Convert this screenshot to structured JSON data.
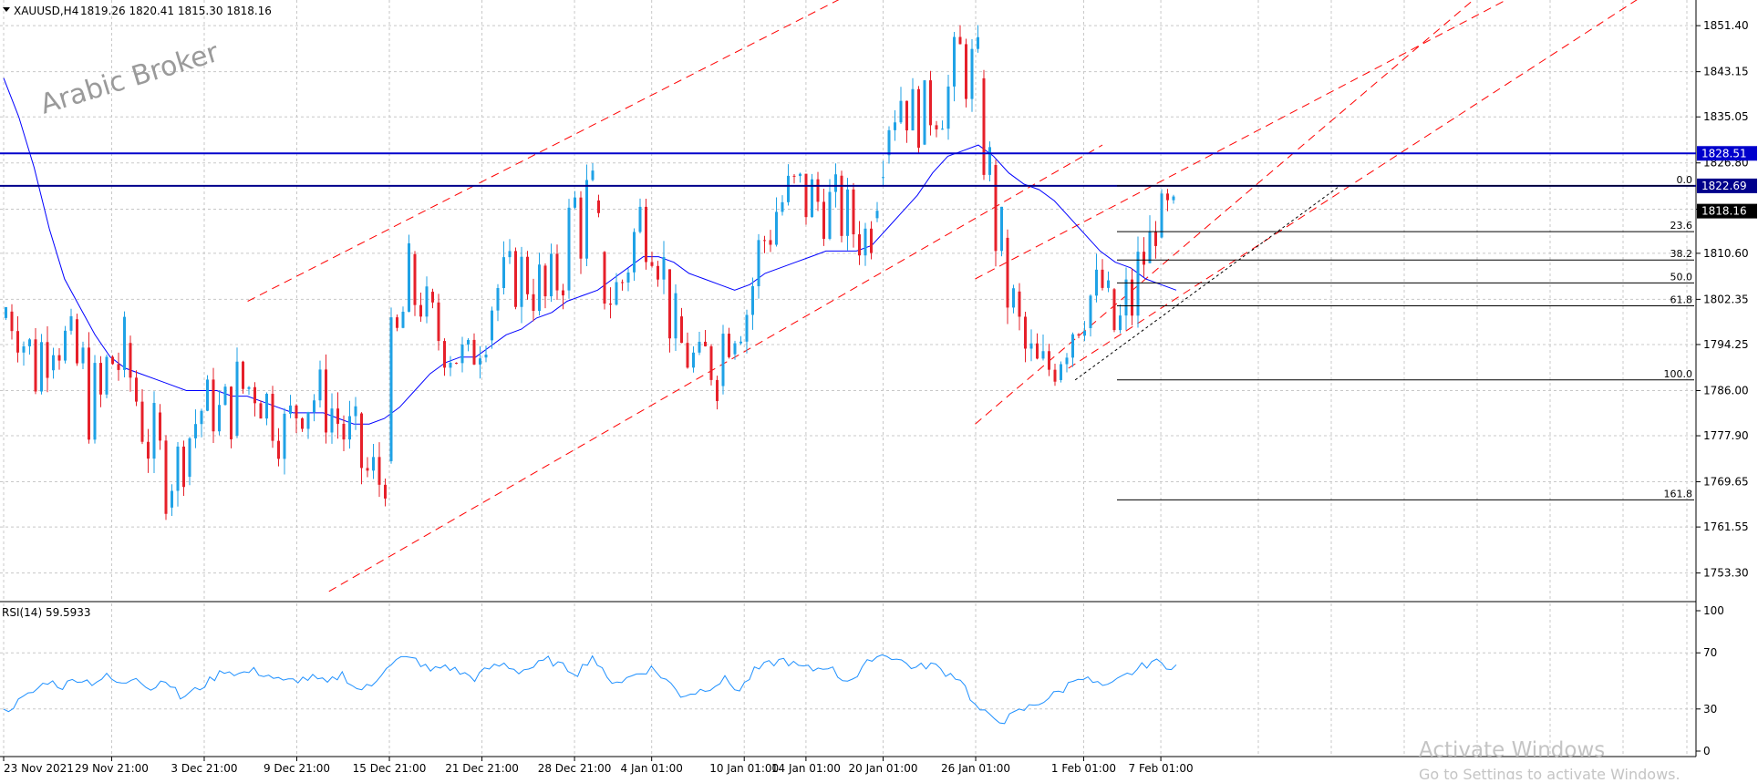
{
  "chart_data": [
    {
      "type": "candlestick",
      "header": {
        "symbol_tf": "XAUUSD,H4",
        "ohlc": "1819.26 1820.41 1815.30 1818.16"
      },
      "watermark": "Arabic Broker",
      "ylim": [
        1748.5,
        1856.0
      ],
      "price_ticks": [
        "1851.40",
        "1843.15",
        "1835.05",
        "1826.80",
        "1818.50",
        "1810.60",
        "1802.35",
        "1794.25",
        "1786.00",
        "1777.90",
        "1769.65",
        "1761.55",
        "1753.30"
      ],
      "x_labels": [
        "23 Nov 2021",
        "29 Nov 21:00",
        "3 Dec 21:00",
        "9 Dec 21:00",
        "15 Dec 21:00",
        "21 Dec 21:00",
        "28 Dec 21:00",
        "4 Jan 01:00",
        "10 Jan 01:00",
        "14 Jan 01:00",
        "20 Jan 01:00",
        "26 Jan 01:00",
        "1 Feb 01:00",
        "7 Feb 01:00"
      ],
      "horizontal_levels": [
        {
          "price": 1828.51,
          "label": "1828.51",
          "color": "#0000cc"
        },
        {
          "price": 1822.69,
          "label": "1822.69",
          "color": "#00008b"
        }
      ],
      "last_price": {
        "price": 1818.16,
        "label": "1818.16",
        "color": "#000000"
      },
      "fibonacci": {
        "high": 1822.69,
        "low": 1787.91,
        "levels": [
          {
            "ratio": 0.0,
            "label": "0.0"
          },
          {
            "ratio": 0.236,
            "label": "23.6"
          },
          {
            "ratio": 0.382,
            "label": "38.2"
          },
          {
            "ratio": 0.5,
            "label": "50.0"
          },
          {
            "ratio": 0.618,
            "label": "61.8"
          },
          {
            "ratio": 1.0,
            "label": "100.0"
          },
          {
            "ratio": 1.618,
            "label": "161.8"
          }
        ]
      },
      "anchors": [
        {
          "label": "23 Nov 2021",
          "low": 1799,
          "high": 1799
        },
        {
          "label": "",
          "low": 1790,
          "high": 1802
        },
        {
          "label": "",
          "low": 1781,
          "high": 1799
        },
        {
          "label": "",
          "low": 1790,
          "high": 1813
        },
        {
          "label": "",
          "low": 1785,
          "high": 1800
        },
        {
          "label": "",
          "low": 1779,
          "high": 1798
        },
        {
          "label": "",
          "low": 1770,
          "high": 1792
        },
        {
          "label": "29 Nov 21:00",
          "low": 1776,
          "high": 1811
        },
        {
          "label": "",
          "low": 1783,
          "high": 1795
        },
        {
          "label": "",
          "low": 1771,
          "high": 1788
        },
        {
          "label": "",
          "low": 1762,
          "high": 1782
        },
        {
          "label": "",
          "low": 1766,
          "high": 1778
        },
        {
          "label": "",
          "low": 1771,
          "high": 1787
        },
        {
          "label": "3 Dec 21:00",
          "low": 1780,
          "high": 1789
        },
        {
          "label": "",
          "low": 1773,
          "high": 1788
        },
        {
          "label": "",
          "low": 1778,
          "high": 1794
        },
        {
          "label": "",
          "low": 1782,
          "high": 1792
        },
        {
          "label": "",
          "low": 1777,
          "high": 1790
        },
        {
          "label": "",
          "low": 1772,
          "high": 1785
        },
        {
          "label": "9 Dec 21:00",
          "low": 1778,
          "high": 1789
        },
        {
          "label": "",
          "low": 1779,
          "high": 1791
        },
        {
          "label": "",
          "low": 1776,
          "high": 1791
        },
        {
          "label": "",
          "low": 1770,
          "high": 1786
        },
        {
          "label": "",
          "low": 1765,
          "high": 1782
        },
        {
          "label": "",
          "low": 1753,
          "high": 1780
        },
        {
          "label": "15 Dec 21:00",
          "low": 1774,
          "high": 1800
        },
        {
          "label": "",
          "low": 1794,
          "high": 1814
        },
        {
          "label": "",
          "low": 1797,
          "high": 1807
        },
        {
          "label": "",
          "low": 1790,
          "high": 1802
        },
        {
          "label": "",
          "low": 1788,
          "high": 1798
        },
        {
          "label": "",
          "low": 1786,
          "high": 1796
        },
        {
          "label": "21 Dec 21:00",
          "low": 1791,
          "high": 1810
        },
        {
          "label": "",
          "low": 1799,
          "high": 1811
        },
        {
          "label": "",
          "low": 1800,
          "high": 1812
        },
        {
          "label": "",
          "low": 1798,
          "high": 1817
        },
        {
          "label": "",
          "low": 1795,
          "high": 1808
        },
        {
          "label": "",
          "low": 1800,
          "high": 1817
        },
        {
          "label": "28 Dec 21:00",
          "low": 1808,
          "high": 1831
        },
        {
          "label": "",
          "low": 1801,
          "high": 1830
        },
        {
          "label": "",
          "low": 1798,
          "high": 1806
        },
        {
          "label": "",
          "low": 1800,
          "high": 1812
        },
        {
          "label": "",
          "low": 1810,
          "high": 1823
        },
        {
          "label": "4 Jan 01:00",
          "low": 1808,
          "high": 1829
        },
        {
          "label": "",
          "low": 1793,
          "high": 1808
        },
        {
          "label": "",
          "low": 1787,
          "high": 1797
        },
        {
          "label": "",
          "low": 1788,
          "high": 1795
        },
        {
          "label": "",
          "low": 1782,
          "high": 1803
        },
        {
          "label": "",
          "low": 1792,
          "high": 1806
        },
        {
          "label": "10 Jan 01:00",
          "low": 1794,
          "high": 1807
        },
        {
          "label": "",
          "low": 1803,
          "high": 1822
        },
        {
          "label": "",
          "low": 1812,
          "high": 1826
        },
        {
          "label": "",
          "low": 1815,
          "high": 1828
        },
        {
          "label": "14 Jan 01:00",
          "low": 1812,
          "high": 1829
        },
        {
          "label": "",
          "low": 1813,
          "high": 1826
        },
        {
          "label": "",
          "low": 1811,
          "high": 1825
        },
        {
          "label": "",
          "low": 1808,
          "high": 1822
        },
        {
          "label": "",
          "low": 1808,
          "high": 1819
        },
        {
          "label": "20 Jan 01:00",
          "low": 1827,
          "high": 1846
        },
        {
          "label": "",
          "low": 1832,
          "high": 1847
        },
        {
          "label": "",
          "low": 1829,
          "high": 1840
        },
        {
          "label": "",
          "low": 1831,
          "high": 1843
        },
        {
          "label": "",
          "low": 1832,
          "high": 1846
        },
        {
          "label": "",
          "low": 1838,
          "high": 1855
        },
        {
          "label": "26 Jan 01:00",
          "low": 1829,
          "high": 1850
        },
        {
          "label": "",
          "low": 1808,
          "high": 1829
        },
        {
          "label": "",
          "low": 1794,
          "high": 1812
        },
        {
          "label": "",
          "low": 1786,
          "high": 1800
        },
        {
          "label": "",
          "low": 1780,
          "high": 1796
        },
        {
          "label": "",
          "low": 1786,
          "high": 1797
        },
        {
          "label": "",
          "low": 1791,
          "high": 1804
        },
        {
          "label": "1 Feb 01:00",
          "low": 1796,
          "high": 1808
        },
        {
          "label": "",
          "low": 1800,
          "high": 1810
        },
        {
          "label": "",
          "low": 1788,
          "high": 1803
        },
        {
          "label": "",
          "low": 1791,
          "high": 1815
        },
        {
          "label": "",
          "low": 1808,
          "high": 1816
        },
        {
          "label": "7 Feb 01:00",
          "low": 1814,
          "high": 1822
        },
        {
          "label": "",
          "low": 1815,
          "high": 1821
        }
      ],
      "moving_average": [
        {
          "price": 1842
        },
        {
          "price": 1835
        },
        {
          "price": 1826
        },
        {
          "price": 1815
        },
        {
          "price": 1806
        },
        {
          "price": 1801
        },
        {
          "price": 1796
        },
        {
          "price": 1792
        },
        {
          "price": 1790
        },
        {
          "price": 1789
        },
        {
          "price": 1788
        },
        {
          "price": 1787
        },
        {
          "price": 1786
        },
        {
          "price": 1786
        },
        {
          "price": 1786
        },
        {
          "price": 1785
        },
        {
          "price": 1785
        },
        {
          "price": 1784
        },
        {
          "price": 1783
        },
        {
          "price": 1782
        },
        {
          "price": 1782
        },
        {
          "price": 1782
        },
        {
          "price": 1781
        },
        {
          "price": 1780
        },
        {
          "price": 1780
        },
        {
          "price": 1781
        },
        {
          "price": 1783
        },
        {
          "price": 1786
        },
        {
          "price": 1789
        },
        {
          "price": 1791
        },
        {
          "price": 1792
        },
        {
          "price": 1792
        },
        {
          "price": 1794
        },
        {
          "price": 1796
        },
        {
          "price": 1797
        },
        {
          "price": 1799
        },
        {
          "price": 1800
        },
        {
          "price": 1802
        },
        {
          "price": 1803
        },
        {
          "price": 1804
        },
        {
          "price": 1806
        },
        {
          "price": 1808
        },
        {
          "price": 1810
        },
        {
          "price": 1810
        },
        {
          "price": 1809
        },
        {
          "price": 1807
        },
        {
          "price": 1806
        },
        {
          "price": 1805
        },
        {
          "price": 1804
        },
        {
          "price": 1805
        },
        {
          "price": 1807
        },
        {
          "price": 1808
        },
        {
          "price": 1809
        },
        {
          "price": 1810
        },
        {
          "price": 1811
        },
        {
          "price": 1811
        },
        {
          "price": 1811
        },
        {
          "price": 1812
        },
        {
          "price": 1815
        },
        {
          "price": 1818
        },
        {
          "price": 1821
        },
        {
          "price": 1825
        },
        {
          "price": 1828
        },
        {
          "price": 1829
        },
        {
          "price": 1830
        },
        {
          "price": 1828
        },
        {
          "price": 1825
        },
        {
          "price": 1823
        },
        {
          "price": 1822
        },
        {
          "price": 1820
        },
        {
          "price": 1817
        },
        {
          "price": 1814
        },
        {
          "price": 1811
        },
        {
          "price": 1809
        },
        {
          "price": 1808
        },
        {
          "price": 1806
        },
        {
          "price": 1805
        },
        {
          "price": 1804
        }
      ],
      "trend_lines": [
        {
          "from": [
            0.146,
            1802
          ],
          "to": [
            0.52,
            1860
          ],
          "style": "dashed",
          "color": "#ff0000"
        },
        {
          "from": [
            0.194,
            1750
          ],
          "to": [
            0.65,
            1830
          ],
          "style": "dashed",
          "color": "#ff0000"
        },
        {
          "from": [
            0.575,
            1780
          ],
          "to": [
            0.888,
            1861
          ],
          "style": "dashed",
          "color": "#ff0000"
        },
        {
          "from": [
            0.575,
            1806
          ],
          "to": [
            0.888,
            1856
          ],
          "style": "dashed",
          "color": "#ff0000"
        },
        {
          "from": [
            0.63,
            1790
          ],
          "to": [
            0.97,
            1857
          ],
          "style": "dashed",
          "color": "#ff0000"
        },
        {
          "from": [
            0.634,
            1787.91
          ],
          "to": [
            0.79,
            1822.69
          ],
          "style": "dotted",
          "color": "#000000"
        }
      ]
    },
    {
      "type": "line",
      "title": "RSI(14) 59.5933",
      "ylim": [
        0,
        100
      ],
      "y_ticks": [
        "100",
        "70",
        "30",
        "0"
      ],
      "series": [
        {
          "values": [
            28,
            35,
            42,
            50,
            46,
            52,
            49,
            53,
            47,
            54,
            44,
            52,
            38,
            43,
            50,
            58,
            55,
            57,
            54,
            49,
            51,
            52,
            48,
            55,
            44,
            46,
            61,
            66,
            65,
            57,
            61,
            56,
            52,
            59,
            62,
            57,
            60,
            65,
            60,
            56,
            68,
            51,
            50,
            55,
            59,
            51,
            40,
            42,
            46,
            51,
            43,
            57,
            62,
            65,
            60,
            58,
            61,
            51,
            53,
            67,
            69,
            64,
            59,
            62,
            56,
            52,
            32,
            24,
            22,
            28,
            33,
            38,
            44,
            54,
            49,
            45,
            52,
            58,
            64,
            61
          ]
        }
      ]
    }
  ],
  "os_watermark": {
    "line1": "Activate Windows",
    "line2": "Go to Settings to activate Windows."
  }
}
